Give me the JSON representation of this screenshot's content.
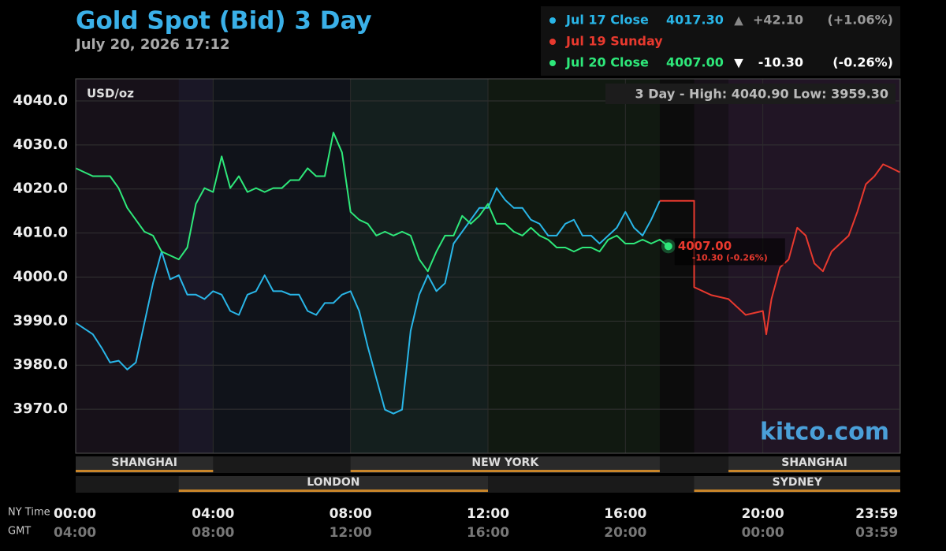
{
  "chart_data": {
    "type": "line",
    "title": "Gold Spot (Bid) 3 Day",
    "subtitle": "July 20, 2026 17:12",
    "unit_label": "USD/oz",
    "range_label": "3 Day - High: 4040.90  Low: 3959.30",
    "watermark": "kitco.com",
    "last_label": "4007.00",
    "last_change_label": "-10.30 (-0.26%)",
    "x_axis_names": [
      "NY Time",
      "GMT"
    ],
    "xlim": [
      0,
      24
    ],
    "xticks": [
      {
        "value": 0,
        "label": "00:00"
      },
      {
        "value": 4,
        "label": "04:00"
      },
      {
        "value": 8,
        "label": "08:00"
      },
      {
        "value": 12,
        "label": "12:00"
      },
      {
        "value": 16,
        "label": "16:00"
      },
      {
        "value": 20,
        "label": "20:00"
      },
      {
        "value": 23.983,
        "label": "23:59"
      }
    ],
    "gmt_labels": [
      "04:00",
      "08:00",
      "12:00",
      "16:00",
      "20:00",
      "00:00",
      "03:59"
    ],
    "ylim": [
      3960,
      4045
    ],
    "yticks": [
      {
        "value": 4040,
        "label": "4040.0"
      },
      {
        "value": 4030,
        "label": "4030.0"
      },
      {
        "value": 4020,
        "label": "4020.0"
      },
      {
        "value": 4010,
        "label": "4010.0"
      },
      {
        "value": 4000,
        "label": "4000.0"
      },
      {
        "value": 3990,
        "label": "3990.0"
      },
      {
        "value": 3980,
        "label": "3980.0"
      },
      {
        "value": 3970,
        "label": "3970.0"
      }
    ],
    "grid": true,
    "sessions": [
      {
        "name": "SHANGHAI",
        "start": 0,
        "end": 4,
        "row": 0,
        "color": "#b050c0"
      },
      {
        "name": "NEW YORK",
        "start": 8,
        "end": 17,
        "row": 0,
        "color": "#50c050"
      },
      {
        "name": "SHANGHAI",
        "start": 19,
        "end": 24,
        "row": 0,
        "color": "#b050c0"
      },
      {
        "name": "LONDON",
        "start": 3,
        "end": 12,
        "row": 1,
        "color": "#4070d0"
      },
      {
        "name": "SYDNEY",
        "start": 18,
        "end": 24,
        "row": 1,
        "color": "#b050c0"
      }
    ],
    "series": [
      {
        "name": "Jul 17 Close",
        "color": "#29b6e8",
        "price": "4017.30",
        "arrow": "▲",
        "change": "+42.10",
        "change_percent": "(+1.06%)",
        "x": [
          0,
          0.5,
          0.75,
          1,
          1.25,
          1.5,
          1.75,
          2,
          2.25,
          2.5,
          2.75,
          3,
          3.25,
          3.5,
          3.75,
          4,
          4.25,
          4.5,
          4.75,
          5,
          5.25,
          5.5,
          5.75,
          6,
          6.25,
          6.5,
          6.75,
          7,
          7.25,
          7.5,
          7.75,
          8,
          8.25,
          8.5,
          8.75,
          9,
          9.25,
          9.5,
          9.75,
          10,
          10.25,
          10.5,
          10.75,
          11,
          11.25,
          11.5,
          11.75,
          12,
          12.25,
          12.5,
          12.75,
          13,
          13.25,
          13.5,
          13.75,
          14,
          14.25,
          14.5,
          14.75,
          15,
          15.25,
          15.5,
          15.75,
          16,
          16.25,
          16.5,
          16.75,
          17
        ],
        "values": [
          3989.6,
          3987,
          3984,
          3980.6,
          3981,
          3979,
          3980.6,
          3989.6,
          3998.6,
          4005.8,
          3999.5,
          4000.4,
          3996,
          3996,
          3995,
          3996.8,
          3996,
          3992.3,
          3991.4,
          3996,
          3996.8,
          4000.4,
          3996.8,
          3996.8,
          3996,
          3996,
          3992.3,
          3991.4,
          3994.1,
          3994.1,
          3996,
          3996.8,
          3992.3,
          3984.2,
          3977,
          3969.9,
          3969,
          3969.9,
          3987.8,
          3996,
          4000.4,
          3996.8,
          3998.6,
          4007.6,
          4010.3,
          4013,
          4015.7,
          4015.7,
          4020.2,
          4017.5,
          4015.7,
          4015.7,
          4013,
          4012.1,
          4009.4,
          4009.4,
          4012.1,
          4013,
          4009.4,
          4009.4,
          4007.6,
          4009.4,
          4011.2,
          4014.8,
          4011.2,
          4009.4,
          4013,
          4017.3
        ]
      },
      {
        "name": "Jul 19 Sunday",
        "color": "#e8392e",
        "x": [
          17,
          18,
          18,
          18.5,
          19,
          19.5,
          20,
          20.1,
          20.25,
          20.5,
          20.75,
          21,
          21.25,
          21.5,
          21.75,
          22,
          22.25,
          22.5,
          22.75,
          23,
          23.25,
          23.5,
          23.75,
          23.983
        ],
        "values": [
          4017.3,
          4017.3,
          3997.7,
          3995.9,
          3995,
          3991.4,
          3992.3,
          3987,
          3995,
          4002.2,
          4004,
          4011.2,
          4009.4,
          4003.1,
          4001.3,
          4005.8,
          4007.6,
          4009.4,
          4014.8,
          4021.1,
          4022.9,
          4025.6,
          4024.7,
          4023.8
        ]
      },
      {
        "name": "Jul 20 Close",
        "color": "#2ee87a",
        "price": "4007.00",
        "arrow": "▼",
        "change": "-10.30",
        "change_percent": "(-0.26%)",
        "x": [
          0,
          0.5,
          1,
          1.25,
          1.5,
          1.75,
          2,
          2.25,
          2.5,
          2.75,
          3,
          3.25,
          3.5,
          3.75,
          4,
          4.25,
          4.5,
          4.75,
          5,
          5.25,
          5.5,
          5.75,
          6,
          6.25,
          6.5,
          6.75,
          7,
          7.25,
          7.5,
          7.75,
          8,
          8.25,
          8.5,
          8.75,
          9,
          9.25,
          9.5,
          9.75,
          10,
          10.25,
          10.5,
          10.75,
          11,
          11.25,
          11.5,
          11.75,
          12,
          12.25,
          12.5,
          12.75,
          13,
          13.25,
          13.5,
          13.75,
          14,
          14.25,
          14.5,
          14.75,
          15,
          15.25,
          15.5,
          15.75,
          16,
          16.25,
          16.5,
          16.75,
          17,
          17.25
        ],
        "values": [
          4024.7,
          4022.9,
          4022.9,
          4020.2,
          4015.7,
          4013,
          4010.3,
          4009.4,
          4005.8,
          4004.9,
          4004,
          4006.7,
          4016.6,
          4020.2,
          4019.3,
          4027.4,
          4020.2,
          4022.9,
          4019.3,
          4020.2,
          4019.3,
          4020.2,
          4020.2,
          4022,
          4022,
          4024.7,
          4022.9,
          4022.9,
          4032.8,
          4028.3,
          4014.8,
          4013,
          4012.1,
          4009.4,
          4010.3,
          4009.4,
          4010.3,
          4009.4,
          4004,
          4001.3,
          4005.8,
          4009.4,
          4009.4,
          4013.9,
          4012.1,
          4013.9,
          4016.6,
          4012.1,
          4012.1,
          4010.3,
          4009.4,
          4011.2,
          4009.4,
          4008.5,
          4006.7,
          4006.7,
          4005.8,
          4006.7,
          4006.7,
          4005.8,
          4008.5,
          4009.4,
          4007.6,
          4007.6,
          4008.5,
          4007.6,
          4008.5,
          4007
        ]
      }
    ]
  }
}
